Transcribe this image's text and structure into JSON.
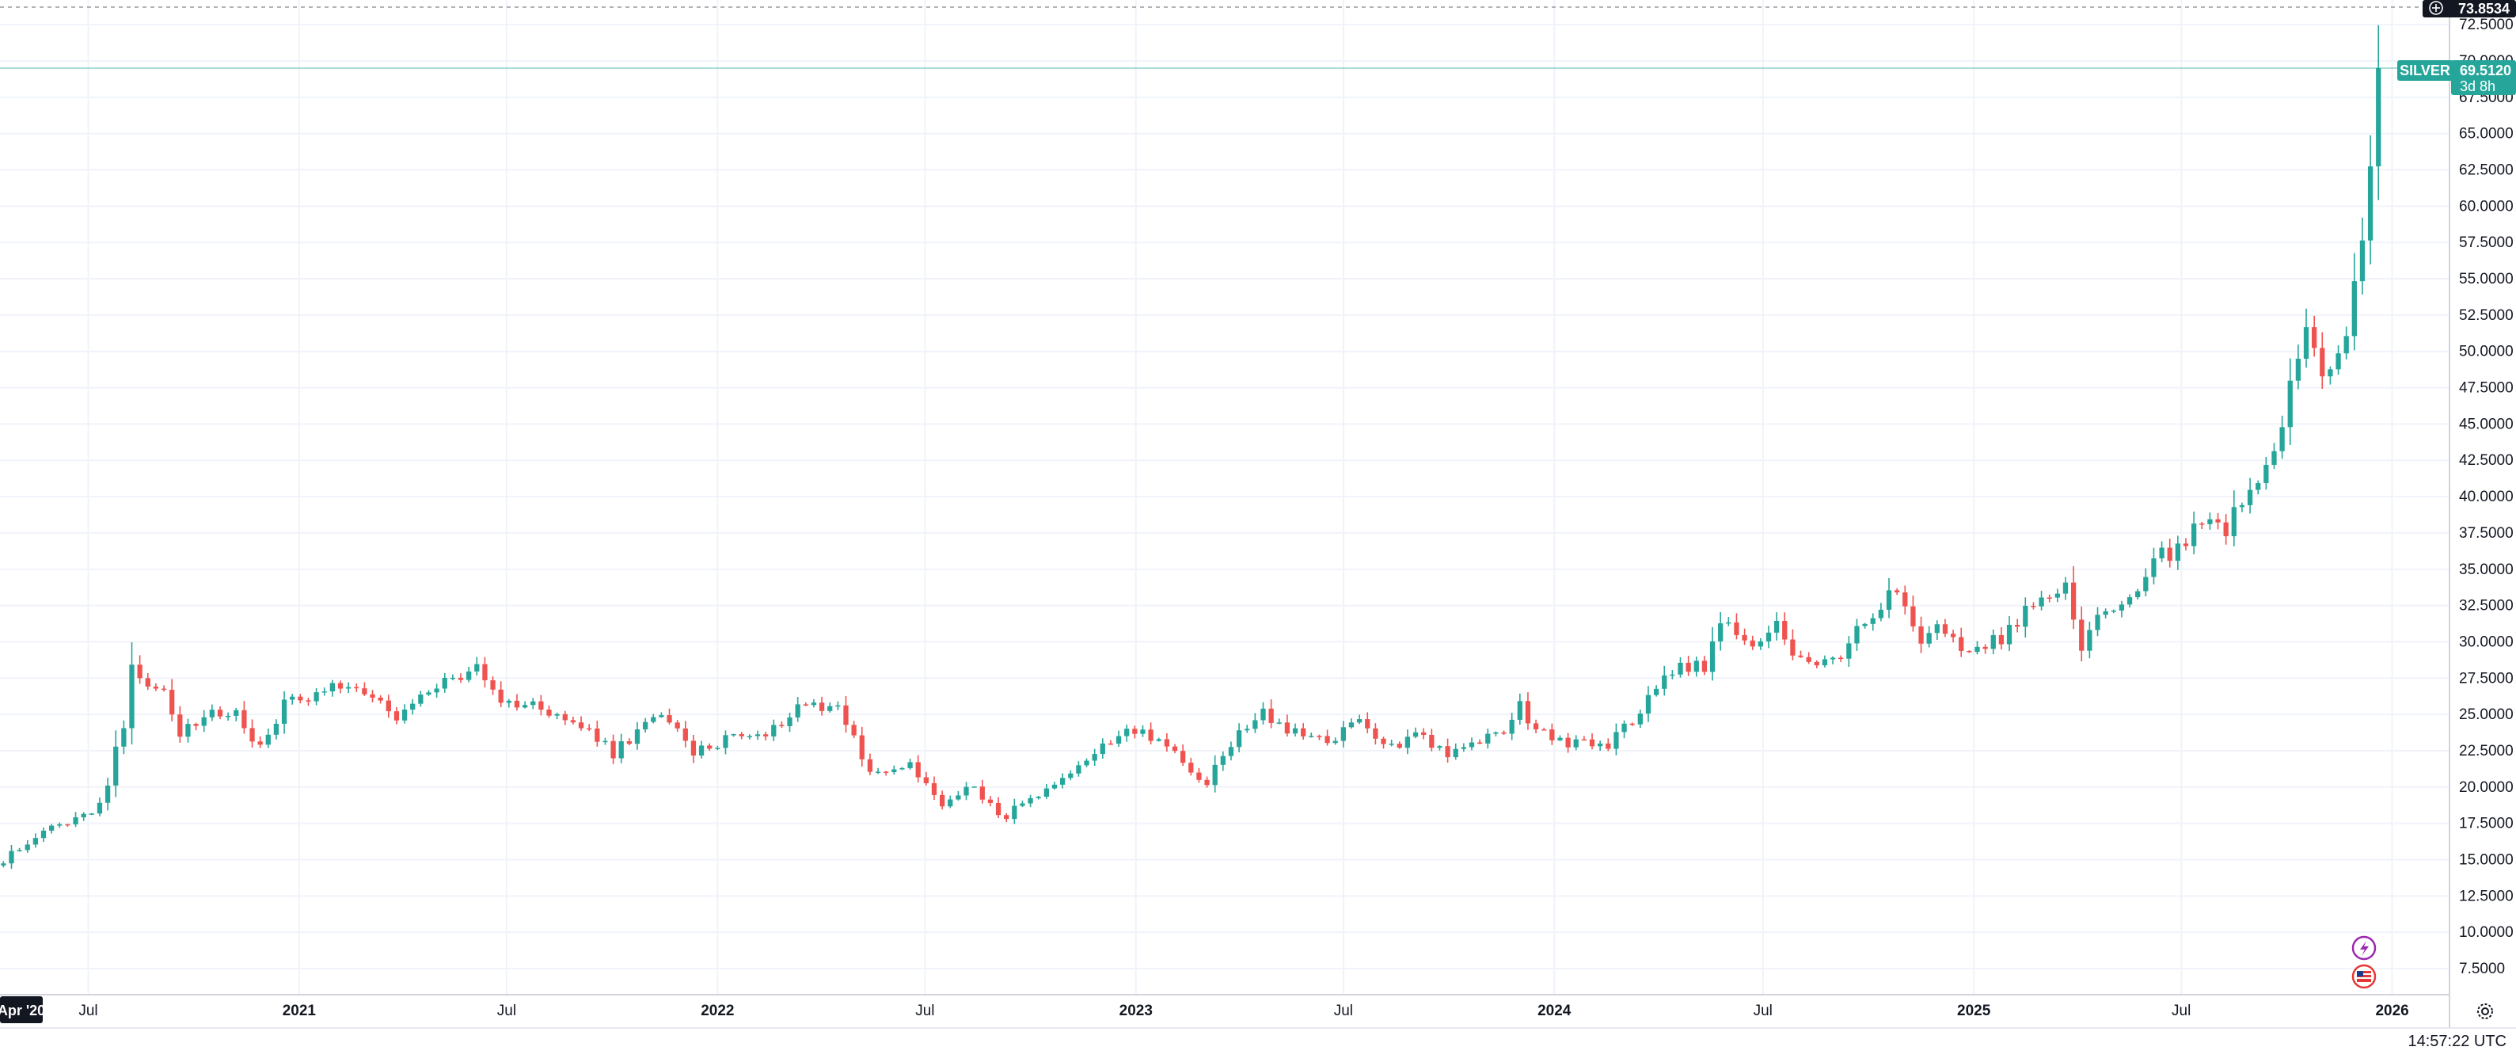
{
  "symbol": "SILVER",
  "last_price": "69.5120",
  "countdown": "3d 8h",
  "crosshair_price": "73.8534",
  "clock": "14:57:22 UTC",
  "x_start_label": "Apr '20",
  "colors": {
    "up": "#26a69a",
    "down": "#ef5350",
    "grid": "#f0f3fa",
    "axis_text": "#131722",
    "price_tag": "#26a69a",
    "crosshair_tag": "#131722",
    "event_icon": "#9c27b0",
    "flag_icon": "#e53935"
  },
  "icons": [
    "lightning-event-icon",
    "us-flag-event-icon",
    "crosshair-plus-icon",
    "settings-gear-icon"
  ],
  "chart_data": {
    "type": "candlestick",
    "title": "",
    "interval": "weekly",
    "series_name": "SILVER",
    "x_tick_labels": [
      "Jul",
      "2021",
      "Jul",
      "2022",
      "Jul",
      "2023",
      "Jul",
      "2024",
      "Jul",
      "2025",
      "Jul",
      "2026"
    ],
    "y_tick_labels": [
      "7.5000",
      "10.0000",
      "12.5000",
      "15.0000",
      "17.5000",
      "20.0000",
      "22.5000",
      "25.0000",
      "27.5000",
      "30.0000",
      "32.5000",
      "35.0000",
      "37.5000",
      "40.0000",
      "42.5000",
      "45.0000",
      "47.5000",
      "50.0000",
      "52.5000",
      "55.0000",
      "57.5000",
      "60.0000",
      "62.5000",
      "65.0000",
      "67.5000",
      "70.0000",
      "72.5000"
    ],
    "ylim": [
      5.7,
      74.2
    ],
    "x_range": [
      "2020-04-15",
      "2026-02-20"
    ],
    "grid": true,
    "last_value": 69.512,
    "close_anchors": [
      [
        "2020-04-18",
        15.0
      ],
      [
        "2020-05-16",
        16.6
      ],
      [
        "2020-06-13",
        17.6
      ],
      [
        "2020-07-04",
        18.2
      ],
      [
        "2020-07-18",
        20.3
      ],
      [
        "2020-07-25",
        22.8
      ],
      [
        "2020-08-01",
        24.3
      ],
      [
        "2020-08-08",
        28.6
      ],
      [
        "2020-08-22",
        26.8
      ],
      [
        "2020-09-05",
        27.0
      ],
      [
        "2020-09-19",
        23.5
      ],
      [
        "2020-10-10",
        24.8
      ],
      [
        "2020-11-07",
        25.3
      ],
      [
        "2020-11-28",
        22.6
      ],
      [
        "2020-12-19",
        25.7
      ],
      [
        "2021-01-30",
        27.0
      ],
      [
        "2021-02-20",
        27.2
      ],
      [
        "2021-03-27",
        24.6
      ],
      [
        "2021-05-08",
        27.4
      ],
      [
        "2021-06-05",
        28.0
      ],
      [
        "2021-06-26",
        26.0
      ],
      [
        "2021-07-31",
        25.5
      ],
      [
        "2021-09-11",
        23.8
      ],
      [
        "2021-10-02",
        22.3
      ],
      [
        "2021-11-13",
        25.2
      ],
      [
        "2021-12-11",
        22.3
      ],
      [
        "2022-01-15",
        23.6
      ],
      [
        "2022-02-19",
        23.9
      ],
      [
        "2022-03-12",
        25.8
      ],
      [
        "2022-04-16",
        25.6
      ],
      [
        "2022-05-14",
        21.0
      ],
      [
        "2022-06-18",
        21.4
      ],
      [
        "2022-07-16",
        18.7
      ],
      [
        "2022-08-13",
        20.3
      ],
      [
        "2022-09-03",
        17.8
      ],
      [
        "2022-10-08",
        19.3
      ],
      [
        "2022-11-05",
        20.6
      ],
      [
        "2022-12-03",
        23.2
      ],
      [
        "2023-01-07",
        23.9
      ],
      [
        "2023-02-04",
        22.4
      ],
      [
        "2023-03-04",
        20.2
      ],
      [
        "2023-03-25",
        23.1
      ],
      [
        "2023-04-22",
        25.2
      ],
      [
        "2023-05-13",
        23.8
      ],
      [
        "2023-06-17",
        23.0
      ],
      [
        "2023-07-15",
        24.6
      ],
      [
        "2023-08-12",
        22.7
      ],
      [
        "2023-09-02",
        23.9
      ],
      [
        "2023-09-30",
        22.2
      ],
      [
        "2023-10-28",
        23.2
      ],
      [
        "2023-11-18",
        23.9
      ],
      [
        "2023-12-02",
        25.5
      ],
      [
        "2023-12-16",
        24.0
      ],
      [
        "2024-01-20",
        22.9
      ],
      [
        "2024-02-17",
        22.9
      ],
      [
        "2024-03-09",
        24.7
      ],
      [
        "2024-04-06",
        27.4
      ],
      [
        "2024-04-20",
        28.5
      ],
      [
        "2024-05-11",
        28.1
      ],
      [
        "2024-05-25",
        31.6
      ],
      [
        "2024-06-08",
        30.4
      ],
      [
        "2024-06-22",
        29.5
      ],
      [
        "2024-07-13",
        31.0
      ],
      [
        "2024-08-03",
        28.6
      ],
      [
        "2024-08-17",
        28.2
      ],
      [
        "2024-09-07",
        28.8
      ],
      [
        "2024-09-28",
        31.5
      ],
      [
        "2024-10-26",
        33.8
      ],
      [
        "2024-11-16",
        30.3
      ],
      [
        "2024-12-07",
        31.0
      ],
      [
        "2024-12-28",
        29.0
      ],
      [
        "2025-01-25",
        30.3
      ],
      [
        "2025-02-22",
        32.5
      ],
      [
        "2025-03-22",
        33.6
      ],
      [
        "2025-04-05",
        29.6
      ],
      [
        "2025-04-26",
        32.2
      ],
      [
        "2025-05-24",
        33.0
      ],
      [
        "2025-06-07",
        35.9
      ],
      [
        "2025-06-28",
        36.3
      ],
      [
        "2025-07-19",
        38.2
      ],
      [
        "2025-08-09",
        37.9
      ],
      [
        "2025-08-30",
        40.7
      ],
      [
        "2025-09-20",
        43.0
      ],
      [
        "2025-10-04",
        47.2
      ],
      [
        "2025-10-18",
        52.0
      ],
      [
        "2025-11-01",
        48.3
      ],
      [
        "2025-11-15",
        49.2
      ],
      [
        "2025-11-22",
        50.4
      ],
      [
        "2025-12-06",
        58.0
      ],
      [
        "2025-12-13",
        61.9
      ],
      [
        "2025-12-20",
        67.3
      ],
      [
        "2025-12-24",
        69.512
      ]
    ]
  }
}
